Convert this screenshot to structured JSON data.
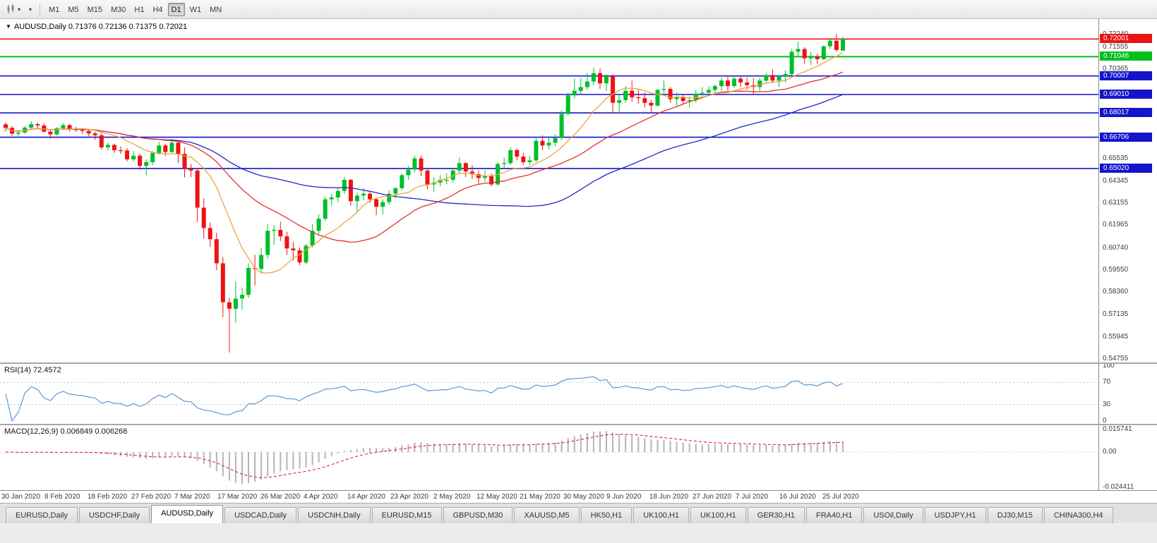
{
  "icons": {
    "caret": "▾",
    "title_marker": "▼"
  },
  "toolbar": {
    "timeframes": [
      "M1",
      "M5",
      "M15",
      "M30",
      "H1",
      "H4",
      "D1",
      "W1",
      "MN"
    ],
    "active_timeframe": "D1"
  },
  "chart_data": {
    "type": "candlestick",
    "symbol": "AUDUSD",
    "timeframe": "Daily",
    "symbol_title": "AUDUSD,Daily  0.71376 0.72136 0.71375 0.72021",
    "current_bar": {
      "open": "0.71376",
      "high": "0.72136",
      "low": "0.71375",
      "close": "0.72021"
    },
    "ylim": [
      0.54755,
      0.7224
    ],
    "colors": {
      "up": "#00bf2a",
      "down": "#ef1212"
    },
    "price_axis_labels": [
      "0.72240",
      "0.71555",
      "0.70365",
      "0.65535",
      "0.64345",
      "0.63155",
      "0.61965",
      "0.60740",
      "0.59550",
      "0.58360",
      "0.57135",
      "0.55945",
      "0.54755"
    ],
    "hlines": [
      {
        "value": 0.72001,
        "label": "0.72001",
        "color": "#e81414",
        "lw": 1.6
      },
      {
        "value": 0.71046,
        "label": "0.71046",
        "color": "#00c01e",
        "lw": 2
      },
      {
        "value": 0.70007,
        "label": "0.70007",
        "color": "#1414cc",
        "lw": 1.6
      },
      {
        "value": 0.6901,
        "label": "0.69010",
        "color": "#1414cc",
        "lw": 1.6
      },
      {
        "value": 0.68017,
        "label": "0.68017",
        "color": "#1414cc",
        "lw": 1.6
      },
      {
        "value": 0.66706,
        "label": "0.66706",
        "color": "#1414cc",
        "lw": 1.6
      },
      {
        "value": 0.6502,
        "label": "0.65020",
        "color": "#1414cc",
        "lw": 1.6
      }
    ],
    "moving_averages": [
      {
        "name": "ma-fast",
        "period": 10,
        "color": "#eca43c"
      },
      {
        "name": "ma-mid",
        "period": 25,
        "color": "#e43030"
      },
      {
        "name": "ma-slow",
        "period": 55,
        "color": "#2626c8"
      }
    ],
    "date_labels": [
      "30 Jan 2020",
      "8 Feb 2020",
      "18 Feb 2020",
      "27 Feb 2020",
      "7 Mar 2020",
      "17 Mar 2020",
      "26 Mar 2020",
      "4 Apr 2020",
      "14 Apr 2020",
      "23 Apr 2020",
      "2 May 2020",
      "12 May 2020",
      "21 May 2020",
      "30 May 2020",
      "9 Jun 2020",
      "18 Jun 2020",
      "27 Jun 2020",
      "7 Jul 2020",
      "16 Jul 2020",
      "25 Jul 2020"
    ],
    "rsi": {
      "label": "RSI(14) 72.4572",
      "period": 14,
      "levels": [
        100,
        70,
        30,
        0
      ],
      "ylim": [
        0,
        100
      ],
      "color": "#5e97d0"
    },
    "macd": {
      "label": "MACD(12,26,9) 0.006849 0.006268",
      "fast": 12,
      "slow": 26,
      "signal": 9,
      "ylim": [
        -0.024411,
        0.015741
      ],
      "axis_labels": [
        "0.015741",
        "0.00",
        "-0.024411"
      ],
      "hist_color": "#b4b4b4",
      "signal_color": "#e02020"
    },
    "ohlc": [
      [
        0.674,
        0.6752,
        0.6701,
        0.6721
      ],
      [
        0.6721,
        0.673,
        0.6678,
        0.669
      ],
      [
        0.669,
        0.6711,
        0.6674,
        0.6696
      ],
      [
        0.6696,
        0.6731,
        0.6689,
        0.6722
      ],
      [
        0.6722,
        0.6756,
        0.6716,
        0.6741
      ],
      [
        0.6741,
        0.6751,
        0.6719,
        0.6734
      ],
      [
        0.6734,
        0.6744,
        0.6694,
        0.6701
      ],
      [
        0.6701,
        0.6712,
        0.6662,
        0.6686
      ],
      [
        0.6686,
        0.6726,
        0.6681,
        0.6719
      ],
      [
        0.6719,
        0.6746,
        0.6711,
        0.6736
      ],
      [
        0.6736,
        0.6741,
        0.6701,
        0.6716
      ],
      [
        0.6716,
        0.6726,
        0.6699,
        0.6709
      ],
      [
        0.6709,
        0.6721,
        0.6689,
        0.6704
      ],
      [
        0.6704,
        0.6714,
        0.6676,
        0.6691
      ],
      [
        0.6691,
        0.6701,
        0.6656,
        0.6681
      ],
      [
        0.6681,
        0.6691,
        0.6604,
        0.6616
      ],
      [
        0.6616,
        0.6641,
        0.6601,
        0.6629
      ],
      [
        0.6629,
        0.6636,
        0.6586,
        0.6601
      ],
      [
        0.6601,
        0.6621,
        0.6581,
        0.6599
      ],
      [
        0.6599,
        0.6611,
        0.6541,
        0.6551
      ],
      [
        0.6551,
        0.6596,
        0.6539,
        0.6571
      ],
      [
        0.6571,
        0.6581,
        0.6494,
        0.6516
      ],
      [
        0.6516,
        0.6551,
        0.6464,
        0.6536
      ],
      [
        0.6536,
        0.6596,
        0.6521,
        0.6586
      ],
      [
        0.6586,
        0.6646,
        0.6576,
        0.6626
      ],
      [
        0.6626,
        0.6636,
        0.6569,
        0.6591
      ],
      [
        0.6591,
        0.6661,
        0.6586,
        0.6641
      ],
      [
        0.6641,
        0.6651,
        0.6531,
        0.6581
      ],
      [
        0.6581,
        0.6616,
        0.6454,
        0.6501
      ],
      [
        0.6501,
        0.6526,
        0.6456,
        0.6491
      ],
      [
        0.6491,
        0.6501,
        0.6214,
        0.6291
      ],
      [
        0.6291,
        0.6341,
        0.6124,
        0.6181
      ],
      [
        0.6181,
        0.6211,
        0.6079,
        0.6121
      ],
      [
        0.6121,
        0.6156,
        0.5954,
        0.5991
      ],
      [
        0.5991,
        0.6026,
        0.5701,
        0.5781
      ],
      [
        0.5781,
        0.5806,
        0.551,
        0.5746
      ],
      [
        0.5746,
        0.5891,
        0.5671,
        0.5801
      ],
      [
        0.5801,
        0.5861,
        0.5741,
        0.5821
      ],
      [
        0.5821,
        0.5991,
        0.5806,
        0.5966
      ],
      [
        0.5966,
        0.6036,
        0.5871,
        0.5961
      ],
      [
        0.5961,
        0.6076,
        0.5936,
        0.6036
      ],
      [
        0.6036,
        0.6201,
        0.6016,
        0.6166
      ],
      [
        0.6166,
        0.6196,
        0.6091,
        0.6171
      ],
      [
        0.6171,
        0.6216,
        0.6111,
        0.6136
      ],
      [
        0.6136,
        0.6161,
        0.6036,
        0.6071
      ],
      [
        0.6071,
        0.6106,
        0.6006,
        0.6061
      ],
      [
        0.6061,
        0.6076,
        0.5981,
        0.5996
      ],
      [
        0.5996,
        0.6096,
        0.5986,
        0.6086
      ],
      [
        0.6086,
        0.6201,
        0.6076,
        0.6166
      ],
      [
        0.6166,
        0.6256,
        0.6146,
        0.6231
      ],
      [
        0.6231,
        0.6351,
        0.6221,
        0.6336
      ],
      [
        0.6336,
        0.6366,
        0.6301,
        0.6346
      ],
      [
        0.6346,
        0.6401,
        0.6321,
        0.6381
      ],
      [
        0.6381,
        0.6456,
        0.6366,
        0.6441
      ],
      [
        0.6441,
        0.6446,
        0.6301,
        0.6326
      ],
      [
        0.6326,
        0.6371,
        0.6266,
        0.6356
      ],
      [
        0.6356,
        0.6396,
        0.6331,
        0.6366
      ],
      [
        0.6366,
        0.6376,
        0.6316,
        0.6336
      ],
      [
        0.6336,
        0.6341,
        0.6251,
        0.6296
      ],
      [
        0.6296,
        0.6336,
        0.6256,
        0.6321
      ],
      [
        0.6321,
        0.6386,
        0.6306,
        0.6366
      ],
      [
        0.6366,
        0.6401,
        0.6341,
        0.6396
      ],
      [
        0.6396,
        0.6476,
        0.6386,
        0.6466
      ],
      [
        0.6466,
        0.6516,
        0.6441,
        0.6496
      ],
      [
        0.6496,
        0.6571,
        0.6481,
        0.6556
      ],
      [
        0.6556,
        0.6571,
        0.6461,
        0.6491
      ],
      [
        0.6491,
        0.6496,
        0.6391,
        0.6416
      ],
      [
        0.6416,
        0.6456,
        0.6376,
        0.6426
      ],
      [
        0.6426,
        0.6466,
        0.6406,
        0.6441
      ],
      [
        0.6441,
        0.6476,
        0.6416,
        0.6441
      ],
      [
        0.6441,
        0.6506,
        0.6426,
        0.6491
      ],
      [
        0.6491,
        0.6561,
        0.6476,
        0.6531
      ],
      [
        0.6531,
        0.6536,
        0.6456,
        0.6486
      ],
      [
        0.6486,
        0.6521,
        0.6446,
        0.6471
      ],
      [
        0.6471,
        0.6491,
        0.6421,
        0.6451
      ],
      [
        0.6451,
        0.6491,
        0.6431,
        0.6461
      ],
      [
        0.6461,
        0.6476,
        0.6406,
        0.6416
      ],
      [
        0.6416,
        0.6536,
        0.6411,
        0.6526
      ],
      [
        0.6526,
        0.6561,
        0.6506,
        0.6531
      ],
      [
        0.6531,
        0.6616,
        0.6521,
        0.6601
      ],
      [
        0.6601,
        0.6611,
        0.6546,
        0.6566
      ],
      [
        0.6566,
        0.6586,
        0.6521,
        0.6536
      ],
      [
        0.6536,
        0.6571,
        0.6521,
        0.6546
      ],
      [
        0.6546,
        0.6666,
        0.6536,
        0.6651
      ],
      [
        0.6651,
        0.6681,
        0.6601,
        0.6626
      ],
      [
        0.6626,
        0.6666,
        0.6606,
        0.6641
      ],
      [
        0.6641,
        0.6686,
        0.6621,
        0.6666
      ],
      [
        0.6666,
        0.6816,
        0.6656,
        0.6796
      ],
      [
        0.6796,
        0.6911,
        0.6786,
        0.6896
      ],
      [
        0.6896,
        0.6986,
        0.6881,
        0.6921
      ],
      [
        0.6921,
        0.6991,
        0.6901,
        0.6941
      ],
      [
        0.6941,
        0.7016,
        0.6926,
        0.6971
      ],
      [
        0.6971,
        0.7046,
        0.6951,
        0.7016
      ],
      [
        0.7016,
        0.7041,
        0.6931,
        0.6961
      ],
      [
        0.6961,
        0.7011,
        0.6921,
        0.7001
      ],
      [
        0.7001,
        0.7011,
        0.6801,
        0.6856
      ],
      [
        0.6856,
        0.6906,
        0.6801,
        0.6871
      ],
      [
        0.6871,
        0.6946,
        0.6856,
        0.6921
      ],
      [
        0.6921,
        0.6976,
        0.6861,
        0.6886
      ],
      [
        0.6886,
        0.6926,
        0.6851,
        0.6881
      ],
      [
        0.6881,
        0.6911,
        0.6831,
        0.6856
      ],
      [
        0.6856,
        0.6871,
        0.6806,
        0.6841
      ],
      [
        0.6841,
        0.6931,
        0.6836,
        0.6926
      ],
      [
        0.6926,
        0.6976,
        0.6906,
        0.6931
      ],
      [
        0.6931,
        0.6941,
        0.6856,
        0.6876
      ],
      [
        0.6876,
        0.6911,
        0.6841,
        0.6886
      ],
      [
        0.6886,
        0.6901,
        0.6846,
        0.6866
      ],
      [
        0.6866,
        0.6891,
        0.6831,
        0.6871
      ],
      [
        0.6871,
        0.6926,
        0.6856,
        0.6906
      ],
      [
        0.6906,
        0.6941,
        0.6881,
        0.6911
      ],
      [
        0.6911,
        0.6946,
        0.6891,
        0.6926
      ],
      [
        0.6926,
        0.6956,
        0.6901,
        0.6946
      ],
      [
        0.6946,
        0.6991,
        0.6921,
        0.6976
      ],
      [
        0.6976,
        0.6996,
        0.6921,
        0.6946
      ],
      [
        0.6946,
        0.7001,
        0.6936,
        0.6986
      ],
      [
        0.6986,
        0.7001,
        0.6941,
        0.6966
      ],
      [
        0.6966,
        0.6991,
        0.6926,
        0.6951
      ],
      [
        0.6951,
        0.6991,
        0.6901,
        0.6941
      ],
      [
        0.6941,
        0.6991,
        0.6921,
        0.6976
      ],
      [
        0.6976,
        0.7016,
        0.6966,
        0.7006
      ],
      [
        0.7006,
        0.7036,
        0.6961,
        0.6976
      ],
      [
        0.6976,
        0.7006,
        0.6941,
        0.6996
      ],
      [
        0.6996,
        0.7031,
        0.6966,
        0.7011
      ],
      [
        0.7011,
        0.7146,
        0.7001,
        0.7131
      ],
      [
        0.7131,
        0.7186,
        0.7101,
        0.7146
      ],
      [
        0.7146,
        0.7156,
        0.7066,
        0.7096
      ],
      [
        0.7096,
        0.7131,
        0.7061,
        0.7106
      ],
      [
        0.7106,
        0.7121,
        0.7066,
        0.7091
      ],
      [
        0.7091,
        0.7166,
        0.7086,
        0.7161
      ],
      [
        0.7161,
        0.7206,
        0.7146,
        0.7191
      ],
      [
        0.7191,
        0.7227,
        0.7131,
        0.7141
      ],
      [
        0.71376,
        0.72136,
        0.71375,
        0.72021
      ]
    ]
  },
  "bottom_tabs": {
    "active_index": 2,
    "items": [
      "EURUSD,Daily",
      "USDCHF,Daily",
      "AUDUSD,Daily",
      "USDCAD,Daily",
      "USDCNH,Daily",
      "EURUSD,M15",
      "GBPUSD,M30",
      "XAUUSD,M5",
      "HK50,H1",
      "UK100,H1",
      "UK100,H1",
      "GER30,H1",
      "FRA40,H1",
      "USOil,Daily",
      "USDJPY,H1",
      "DJ30,M15",
      "CHINA300,H4"
    ]
  }
}
